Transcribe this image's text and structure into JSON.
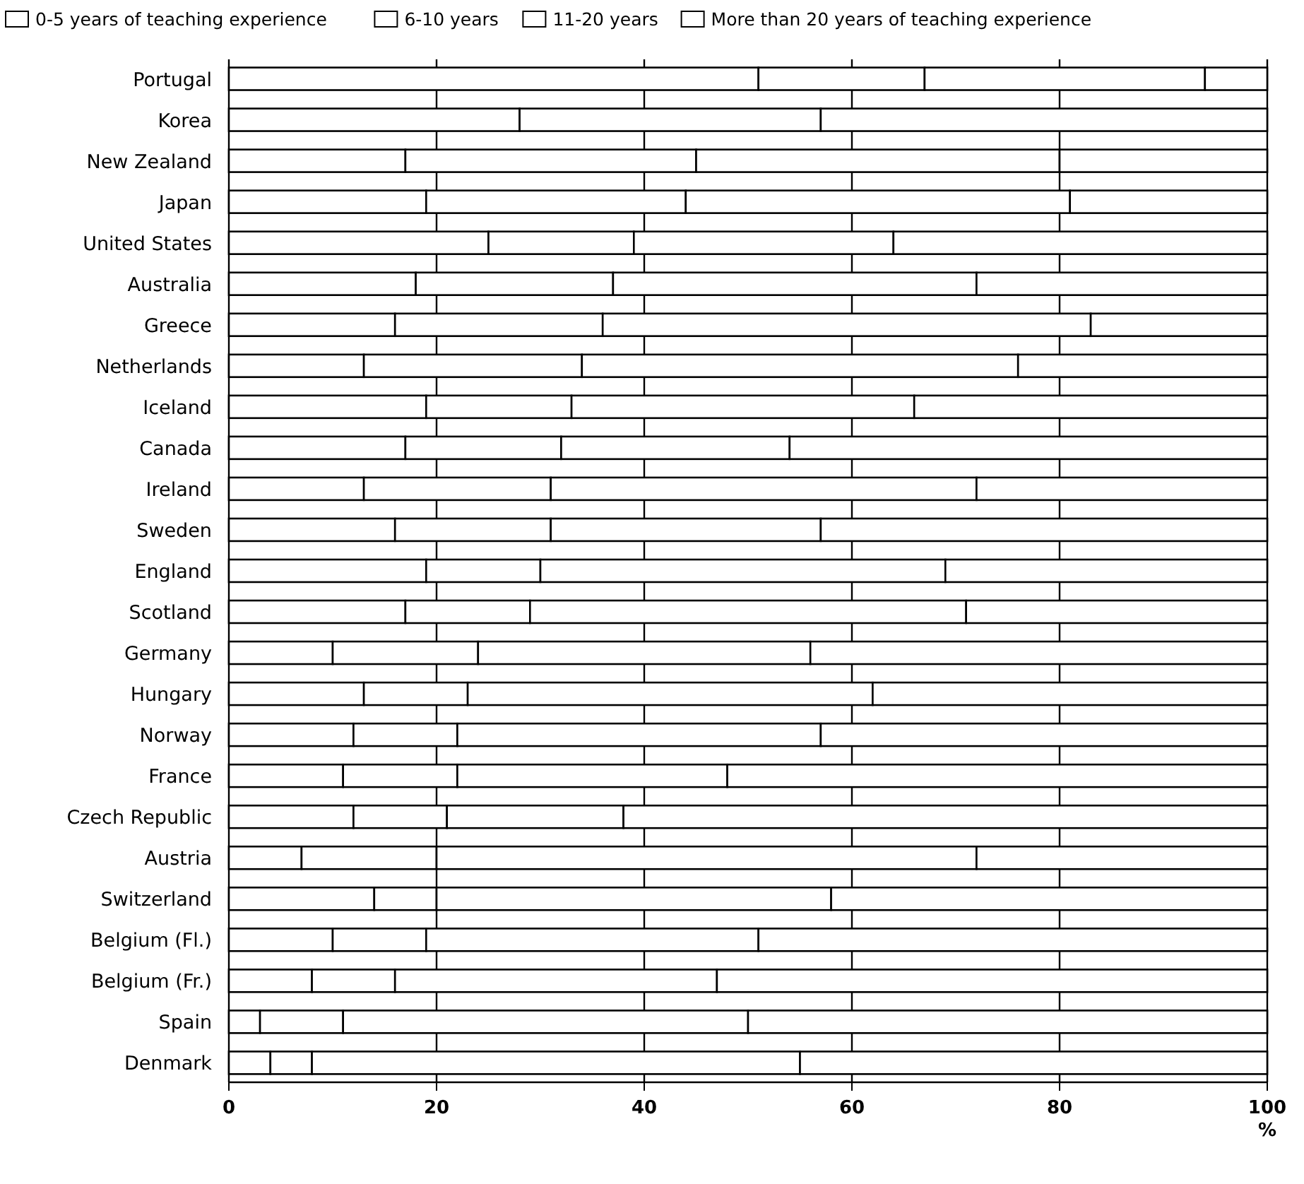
{
  "chart_data": {
    "type": "bar",
    "orientation": "horizontal",
    "stacked": true,
    "categories": [
      "Portugal",
      "Korea",
      "New Zealand",
      "Japan",
      "United States",
      "Australia",
      "Greece",
      "Netherlands",
      "Iceland",
      "Canada",
      "Ireland",
      "Sweden",
      "England",
      "Scotland",
      "Germany",
      "Hungary",
      "Norway",
      "France",
      "Czech Republic",
      "Austria",
      "Switzerland",
      "Belgium (Fl.)",
      "Belgium (Fr.)",
      "Spain",
      "Denmark"
    ],
    "series": [
      {
        "name": "0-5 years of teaching experience",
        "color": "#ffffff",
        "values": [
          51,
          28,
          17,
          19,
          25,
          18,
          16,
          13,
          19,
          17,
          13,
          16,
          19,
          17,
          10,
          13,
          12,
          11,
          12,
          7,
          14,
          10,
          8,
          3,
          4
        ]
      },
      {
        "name": "6-10 years",
        "color": "#ffffff",
        "values": [
          16,
          29,
          28,
          25,
          14,
          19,
          20,
          21,
          14,
          15,
          18,
          15,
          11,
          12,
          14,
          10,
          10,
          11,
          9,
          13,
          6,
          9,
          8,
          8,
          4
        ]
      },
      {
        "name": "11-20 years",
        "color": "#ffffff",
        "values": [
          27,
          43,
          35,
          37,
          25,
          35,
          47,
          42,
          33,
          22,
          41,
          26,
          39,
          42,
          32,
          39,
          35,
          26,
          17,
          52,
          38,
          32,
          31,
          39,
          47
        ]
      },
      {
        "name": "More than 20 years of teaching experience",
        "color": "#ffffff",
        "values": [
          6,
          0,
          20,
          19,
          36,
          28,
          17,
          24,
          34,
          46,
          28,
          43,
          31,
          29,
          44,
          38,
          43,
          52,
          62,
          28,
          42,
          49,
          53,
          50,
          45
        ]
      }
    ],
    "xlim": [
      0,
      100
    ],
    "xticks": [
      0,
      20,
      40,
      60,
      80,
      100
    ],
    "xlabel": "%",
    "grid": "x",
    "legend": "top"
  }
}
